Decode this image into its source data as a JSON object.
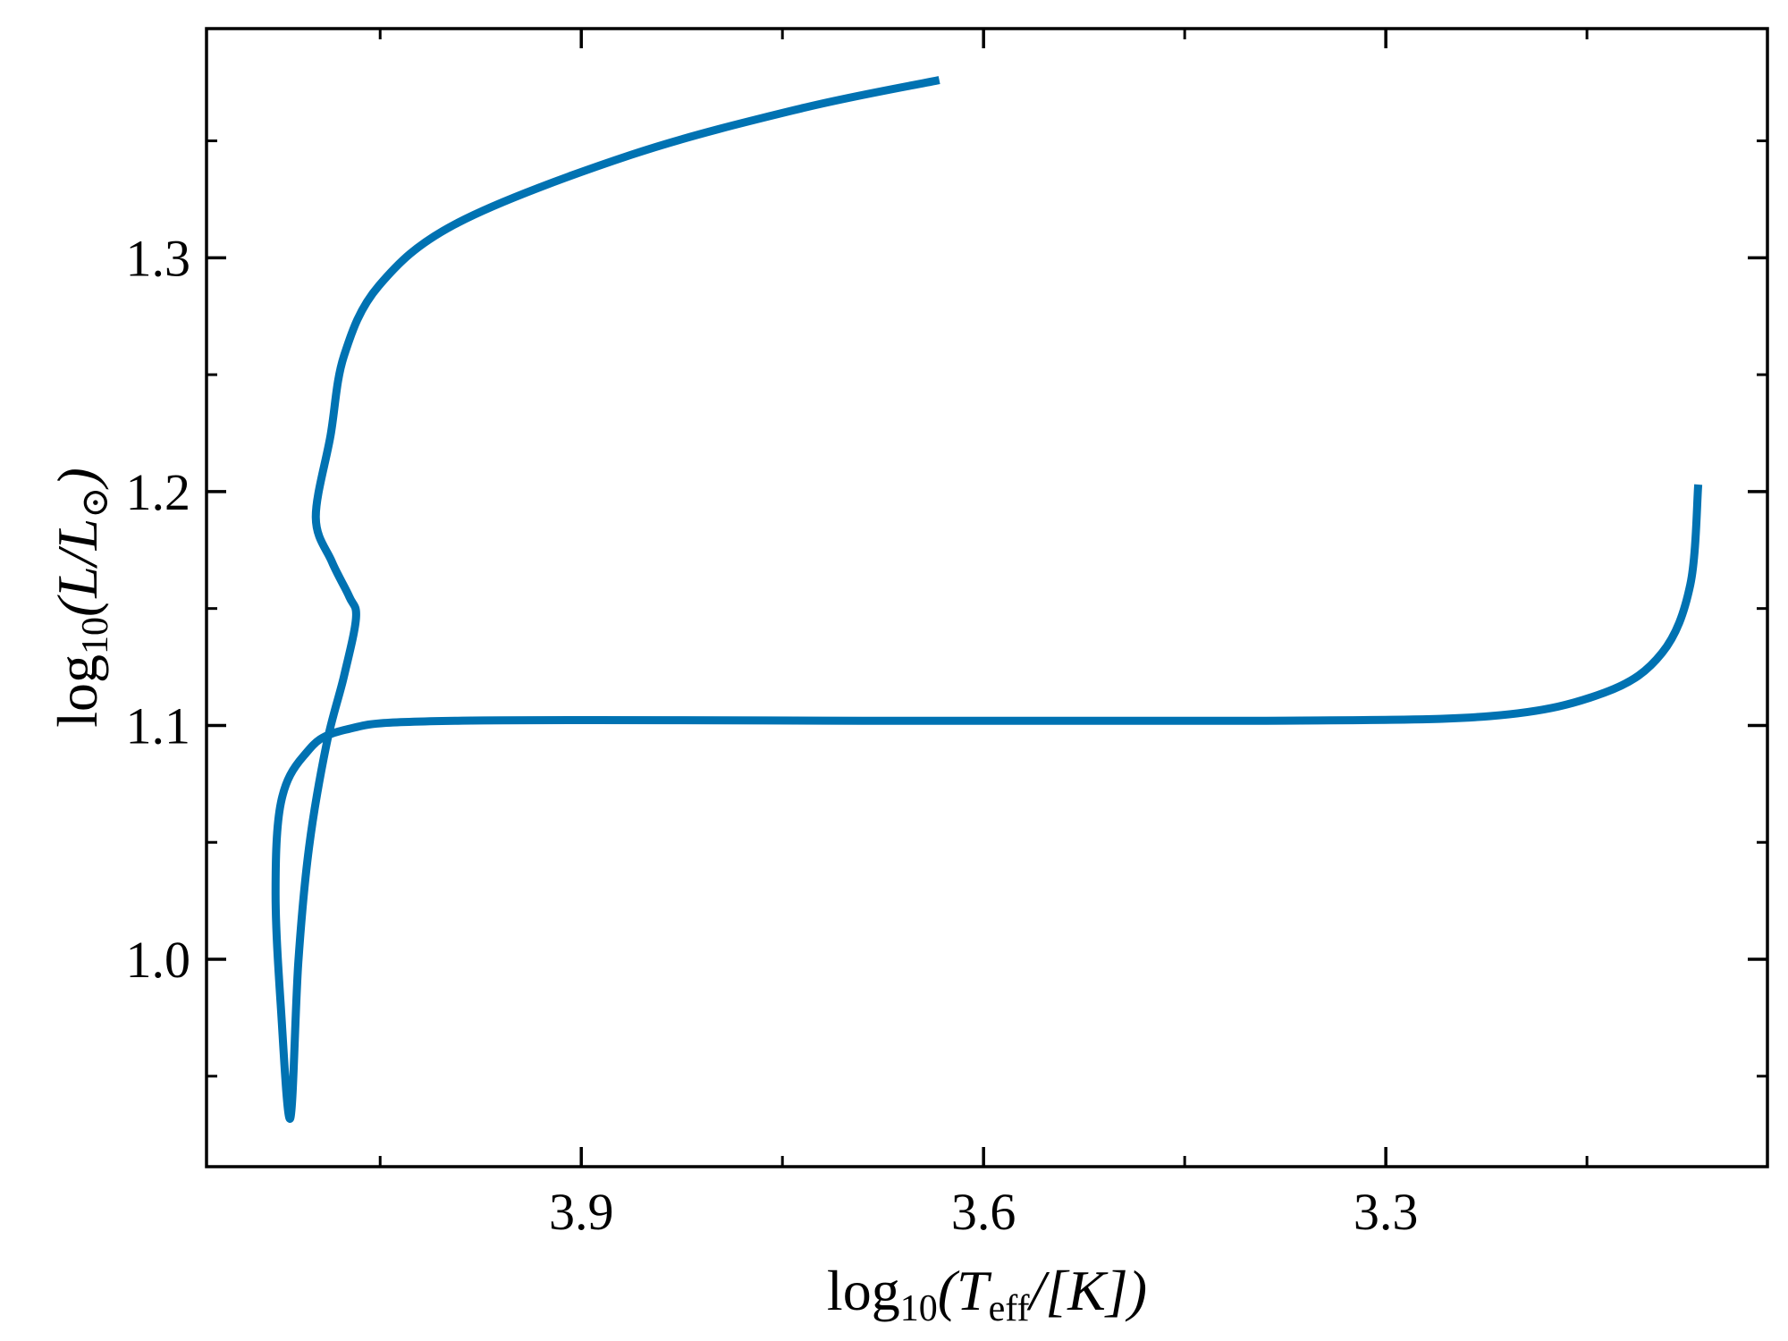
{
  "chart_data": {
    "type": "line",
    "x_label": [
      "log",
      "10",
      "(T",
      "eff",
      "/[K])"
    ],
    "y_label": [
      "log",
      "10",
      "(L/L",
      "⊙",
      ")"
    ],
    "xlim": [
      4.1795,
      3.0154
    ],
    "ylim": [
      0.9113,
      1.398
    ],
    "xticks": [
      3.9,
      3.6,
      3.3
    ],
    "xminor": [
      4.05,
      3.75,
      3.45,
      3.15
    ],
    "yticks": [
      {
        "value": 1.0,
        "label": "1.0"
      },
      1.1,
      1.2,
      1.3
    ],
    "yminor": [
      0.95,
      1.05,
      1.15,
      1.25,
      1.35
    ],
    "grid": false,
    "series": [
      {
        "color": "#0072b2",
        "x": [
          3.067,
          3.073,
          3.094,
          3.137,
          3.222,
          3.393,
          3.65,
          3.992,
          4.077,
          4.107,
          4.124,
          4.128,
          4.124,
          4.117,
          4.111,
          4.103,
          4.09,
          4.077,
          4.068,
          4.073,
          4.086,
          4.098,
          4.087,
          4.077,
          4.051,
          3.992,
          3.863,
          3.735,
          3.633
        ],
        "values": [
          1.203,
          1.16,
          1.131,
          1.114,
          1.104,
          1.102,
          1.102,
          1.102,
          1.098,
          1.087,
          1.067,
          1.028,
          0.979,
          0.932,
          0.999,
          1.048,
          1.092,
          1.121,
          1.146,
          1.155,
          1.17,
          1.189,
          1.224,
          1.258,
          1.288,
          1.315,
          1.344,
          1.364,
          1.376
        ]
      }
    ]
  }
}
